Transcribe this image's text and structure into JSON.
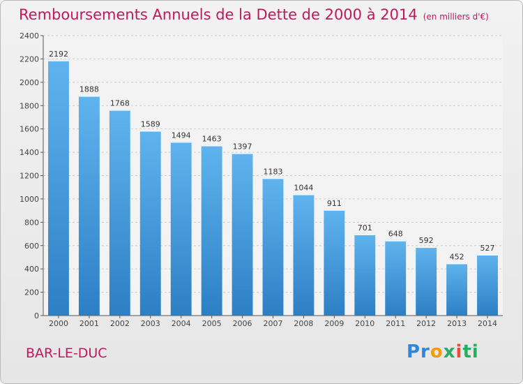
{
  "header": {
    "title": "Remboursements Annuels de la Dette de 2000 à 2014",
    "subtitle": "(en milliers d'€)"
  },
  "footer": {
    "city": "BAR-LE-DUC",
    "logo_text": "Proxiti",
    "logo_colors": [
      "#2e86de",
      "#f39c12",
      "#27ae60",
      "#e74c3c"
    ]
  },
  "chart_data": {
    "type": "bar",
    "title": "Remboursements Annuels de la Dette de 2000 à 2014",
    "subtitle": "(en milliers d'€)",
    "xlabel": "",
    "ylabel": "",
    "ylim": [
      0,
      2400
    ],
    "yticks": [
      0,
      200,
      400,
      600,
      800,
      1000,
      1200,
      1400,
      1600,
      1800,
      2000,
      2200,
      2400
    ],
    "grid": true,
    "categories": [
      "2000",
      "2001",
      "2002",
      "2003",
      "2004",
      "2005",
      "2006",
      "2007",
      "2008",
      "2009",
      "2010",
      "2011",
      "2012",
      "2013",
      "2014"
    ],
    "values": [
      2192,
      1888,
      1768,
      1589,
      1494,
      1463,
      1397,
      1183,
      1044,
      911,
      701,
      648,
      592,
      452,
      527
    ],
    "bar_color": "#4aa3e6",
    "bar_color_dark": "#2d7fc4"
  }
}
